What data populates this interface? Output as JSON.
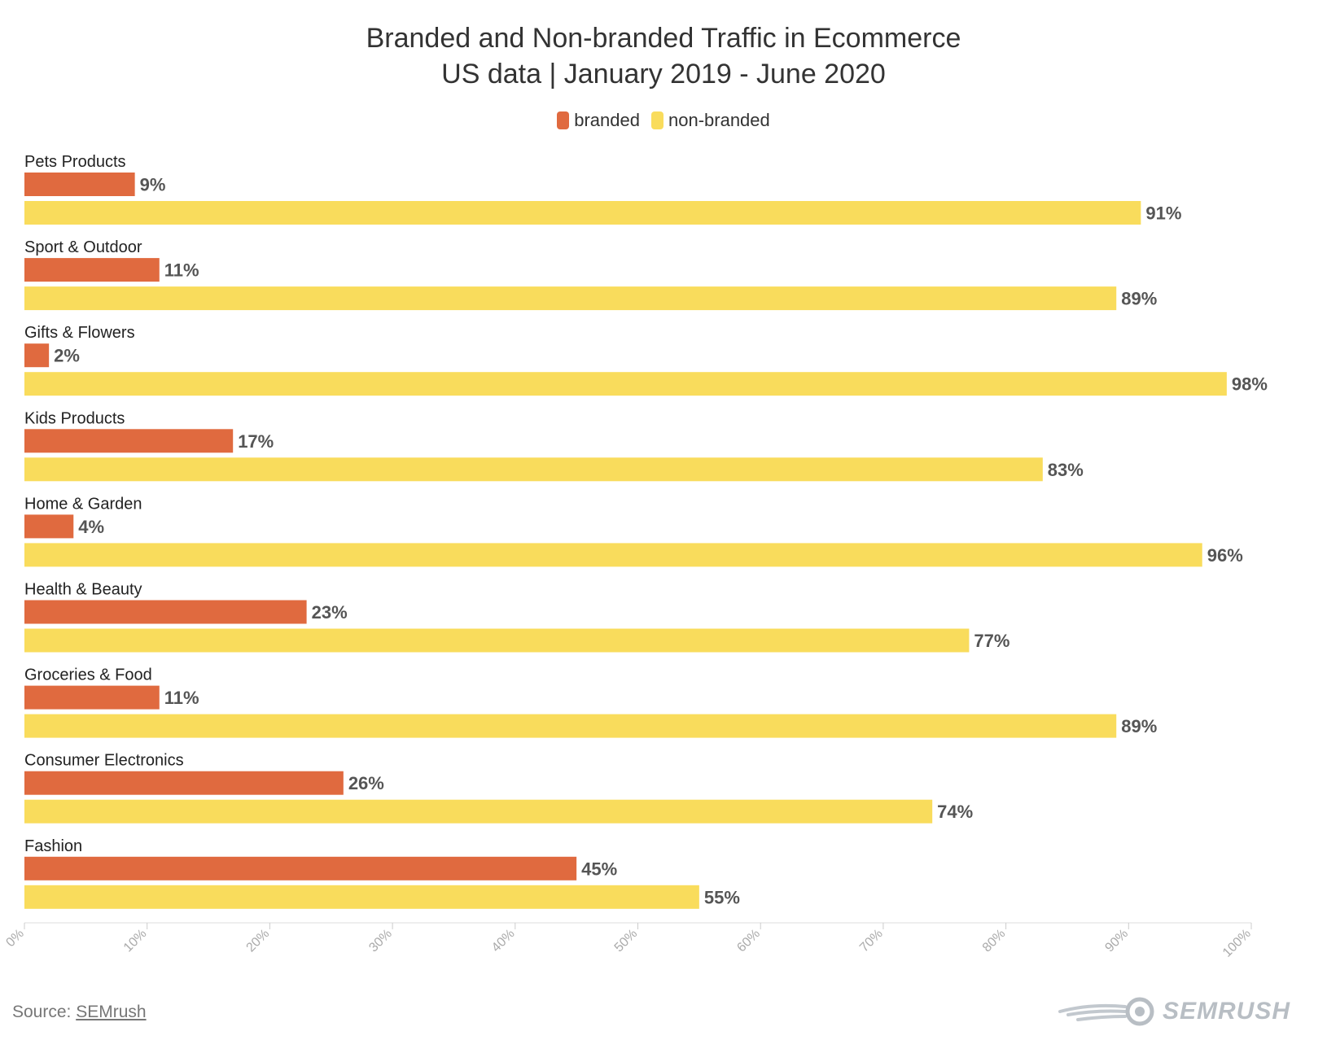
{
  "chart_data": {
    "type": "bar",
    "orientation": "horizontal",
    "title": "Branded and Non-branded Traffic in Ecommerce",
    "subtitle": "US data | January 2019 - June 2020",
    "categories": [
      "Pets Products",
      "Sport & Outdoor",
      "Gifts & Flowers",
      "Kids Products",
      "Home & Garden",
      "Health & Beauty",
      "Groceries & Food",
      "Consumer Electronics",
      "Fashion"
    ],
    "series": [
      {
        "name": "branded",
        "color": "#e06a3f",
        "values": [
          9,
          11,
          2,
          17,
          4,
          23,
          11,
          26,
          45
        ],
        "labels": [
          "9%",
          "11%",
          "2%",
          "17%",
          "4%",
          "23%",
          "11%",
          "26%",
          "45%"
        ]
      },
      {
        "name": "non-branded",
        "color": "#f9dc5c",
        "values": [
          91,
          89,
          98,
          83,
          96,
          77,
          89,
          74,
          55
        ],
        "labels": [
          "91%",
          "89%",
          "98%",
          "83%",
          "96%",
          "77%",
          "89%",
          "74%",
          "55%"
        ]
      }
    ],
    "xlim": [
      0,
      100
    ],
    "x_ticks": [
      "0%",
      "10%",
      "20%",
      "30%",
      "40%",
      "50%",
      "60%",
      "70%",
      "80%",
      "90%",
      "100%"
    ],
    "legend_position": "top-center",
    "grid": false
  },
  "source": {
    "prefix": "Source: ",
    "link_text": "SEMrush"
  },
  "logo": {
    "text": "SEMRUSH"
  }
}
